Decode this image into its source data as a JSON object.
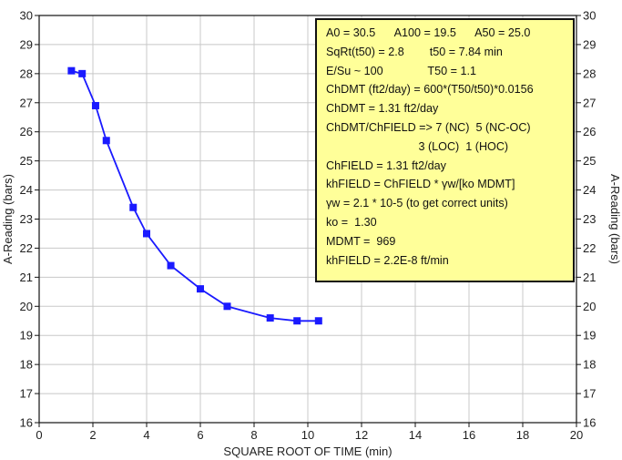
{
  "chart_data": {
    "type": "line",
    "xlabel": "SQUARE ROOT OF TIME (min)",
    "ylabel": "A-Reading (bars)",
    "ylabel_right": "A-Reading (bars)",
    "xlim": [
      0,
      20
    ],
    "ylim": [
      16,
      30
    ],
    "x_ticks": [
      0,
      2,
      4,
      6,
      8,
      10,
      12,
      14,
      16,
      18,
      20
    ],
    "y_ticks": [
      16,
      17,
      18,
      19,
      20,
      21,
      22,
      23,
      24,
      25,
      26,
      27,
      28,
      29,
      30
    ],
    "grid": true,
    "color": "#1a1aff",
    "marker": "square",
    "series": [
      {
        "x": [
          1.2,
          1.6,
          2.1,
          2.5,
          3.5,
          4.0,
          4.9,
          6.0,
          7.0,
          8.6,
          9.6,
          10.4
        ],
        "y": [
          28.1,
          28.0,
          26.9,
          25.7,
          23.4,
          22.5,
          21.4,
          20.6,
          20.0,
          19.6,
          19.5,
          19.5
        ]
      }
    ]
  },
  "annotation_lines": [
    "A0 = 30.5      A100 = 19.5      A50 = 25.0",
    "SqRt(t50) = 2.8        t50 = 7.84 min",
    "E/Su ~ 100              T50 = 1.1",
    "ChDMT (ft2/day) = 600*(T50/t50)*0.0156",
    "ChDMT = 1.31 ft2/day",
    "ChDMT/ChFIELD => 7 (NC)  5 (NC-OC)",
    "                             3 (LOC)  1 (HOC)",
    "ChFIELD = 1.31 ft2/day",
    "khFIELD = ChFIELD * γw/[ko MDMT]",
    "γw = 2.1 * 10-5 (to get correct units)",
    "ko =  1.30",
    "MDMT =  969",
    "khFIELD = 2.2E-8 ft/min"
  ]
}
